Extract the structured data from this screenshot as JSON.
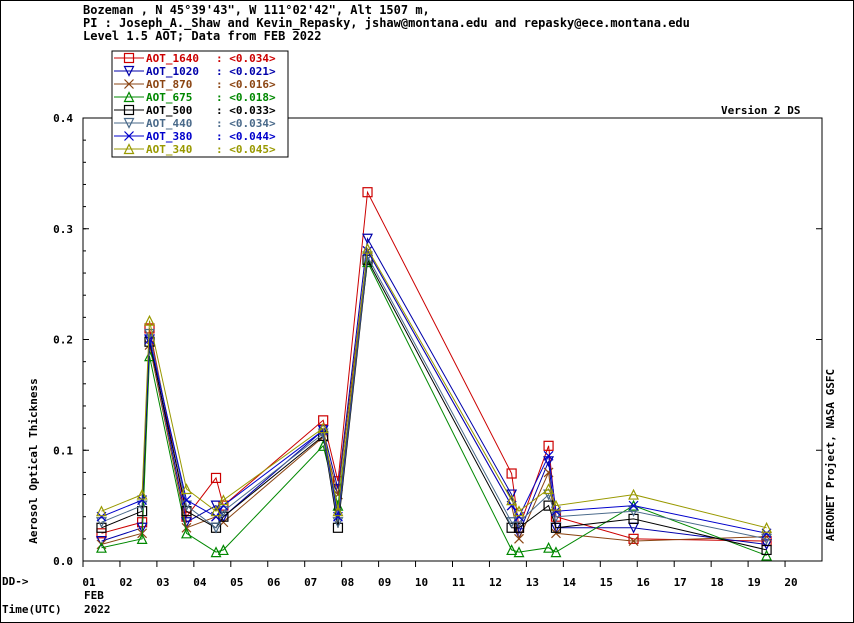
{
  "header": {
    "line1": "Bozeman , N 45°39'43\", W 111°02'42\", Alt 1507 m,",
    "line2": "PI : Joseph_A._Shaw and Kevin_Repasky, jshaw@montana.edu and repasky@ece.montana.edu",
    "line3": "Level 1.5 AOT; Data from FEB 2022"
  },
  "version_label": "Version 2 DS",
  "right_label": "AERONET Project, NASA GSFC",
  "x_prefix": "DD->",
  "x_month": "FEB",
  "x_year": "2022",
  "time_label": "Time(UTC)",
  "chart_data": {
    "type": "line",
    "ylabel": "Aerosol Optical Thickness",
    "ylim": [
      0,
      0.4
    ],
    "yticks": [
      "0.0",
      "0.1",
      "0.2",
      "0.3",
      "0.4"
    ],
    "xlim": [
      1,
      21
    ],
    "xticks": [
      "01",
      "02",
      "03",
      "04",
      "05",
      "06",
      "07",
      "08",
      "09",
      "10",
      "11",
      "12",
      "13",
      "14",
      "15",
      "16",
      "17",
      "18",
      "19",
      "20"
    ],
    "legend_position": "top-left",
    "series": [
      {
        "name": "AOT_1640",
        "value_label": "<0.034>",
        "color": "#cc0000",
        "marker": "square",
        "x": [
          1.5,
          2.6,
          2.8,
          3.8,
          4.6,
          4.8,
          7.5,
          7.9,
          8.7,
          12.6,
          12.8,
          13.6,
          13.8,
          15.9,
          19.5
        ],
        "y": [
          0.025,
          0.035,
          0.21,
          0.04,
          0.075,
          0.05,
          0.127,
          0.072,
          0.333,
          0.079,
          0.03,
          0.104,
          0.04,
          0.02,
          0.018
        ]
      },
      {
        "name": "AOT_1020",
        "value_label": "<0.021>",
        "color": "#0000aa",
        "marker": "triangle-down",
        "x": [
          1.5,
          2.6,
          2.8,
          3.8,
          4.6,
          4.8,
          7.5,
          7.9,
          8.7,
          12.6,
          12.8,
          13.6,
          13.8,
          15.9,
          19.5
        ],
        "y": [
          0.018,
          0.03,
          0.2,
          0.035,
          0.05,
          0.04,
          0.118,
          0.065,
          0.291,
          0.06,
          0.025,
          0.09,
          0.03,
          0.03,
          0.015
        ]
      },
      {
        "name": "AOT_870",
        "value_label": "<0.016>",
        "color": "#8b4513",
        "marker": "x",
        "x": [
          1.5,
          2.6,
          2.8,
          3.8,
          4.6,
          4.8,
          7.5,
          7.9,
          8.7,
          12.6,
          12.8,
          13.6,
          13.8,
          15.9,
          19.5
        ],
        "y": [
          0.015,
          0.025,
          0.195,
          0.03,
          0.04,
          0.035,
          0.112,
          0.06,
          0.28,
          0.05,
          0.02,
          0.08,
          0.025,
          0.018,
          0.022
        ]
      },
      {
        "name": "AOT_675",
        "value_label": "<0.018>",
        "color": "#008800",
        "marker": "triangle",
        "x": [
          1.5,
          2.6,
          2.8,
          3.8,
          4.6,
          4.8,
          7.5,
          7.9,
          8.7,
          12.6,
          12.8,
          13.6,
          13.8,
          15.9,
          19.5
        ],
        "y": [
          0.012,
          0.02,
          0.185,
          0.025,
          0.008,
          0.01,
          0.104,
          0.05,
          0.27,
          0.01,
          0.008,
          0.012,
          0.008,
          0.05,
          0.005
        ]
      },
      {
        "name": "AOT_500",
        "value_label": "<0.033>",
        "color": "#000000",
        "marker": "square",
        "x": [
          1.5,
          2.6,
          2.8,
          3.8,
          4.6,
          4.8,
          7.5,
          7.9,
          8.7,
          12.6,
          12.8,
          13.6,
          13.8,
          15.9,
          19.5
        ],
        "y": [
          0.03,
          0.045,
          0.198,
          0.045,
          0.03,
          0.04,
          0.113,
          0.03,
          0.272,
          0.03,
          0.03,
          0.05,
          0.03,
          0.038,
          0.01
        ]
      },
      {
        "name": "AOT_440",
        "value_label": "<0.034>",
        "color": "#4a6a8a",
        "marker": "triangle-down",
        "x": [
          1.5,
          2.6,
          2.8,
          3.8,
          4.6,
          4.8,
          7.5,
          7.9,
          8.7,
          12.6,
          12.8,
          13.6,
          13.8,
          15.9,
          19.5
        ],
        "y": [
          0.035,
          0.05,
          0.205,
          0.05,
          0.03,
          0.045,
          0.115,
          0.035,
          0.275,
          0.035,
          0.035,
          0.06,
          0.04,
          0.045,
          0.02
        ]
      },
      {
        "name": "AOT_380",
        "value_label": "<0.044>",
        "color": "#0000cc",
        "marker": "x",
        "x": [
          1.5,
          2.6,
          2.8,
          3.8,
          4.6,
          4.8,
          7.5,
          7.9,
          8.7,
          12.6,
          12.8,
          13.6,
          13.8,
          15.9,
          19.5
        ],
        "y": [
          0.04,
          0.055,
          0.2,
          0.055,
          0.04,
          0.05,
          0.118,
          0.04,
          0.28,
          0.05,
          0.04,
          0.095,
          0.045,
          0.05,
          0.025
        ]
      },
      {
        "name": "AOT_340",
        "value_label": "<0.045>",
        "color": "#999900",
        "marker": "triangle",
        "x": [
          1.5,
          2.6,
          2.8,
          3.8,
          4.6,
          4.8,
          7.5,
          7.9,
          8.7,
          12.6,
          12.8,
          13.6,
          13.8,
          15.9,
          19.5
        ],
        "y": [
          0.045,
          0.06,
          0.217,
          0.065,
          0.045,
          0.055,
          0.12,
          0.045,
          0.282,
          0.055,
          0.045,
          0.065,
          0.05,
          0.06,
          0.03
        ]
      }
    ]
  }
}
